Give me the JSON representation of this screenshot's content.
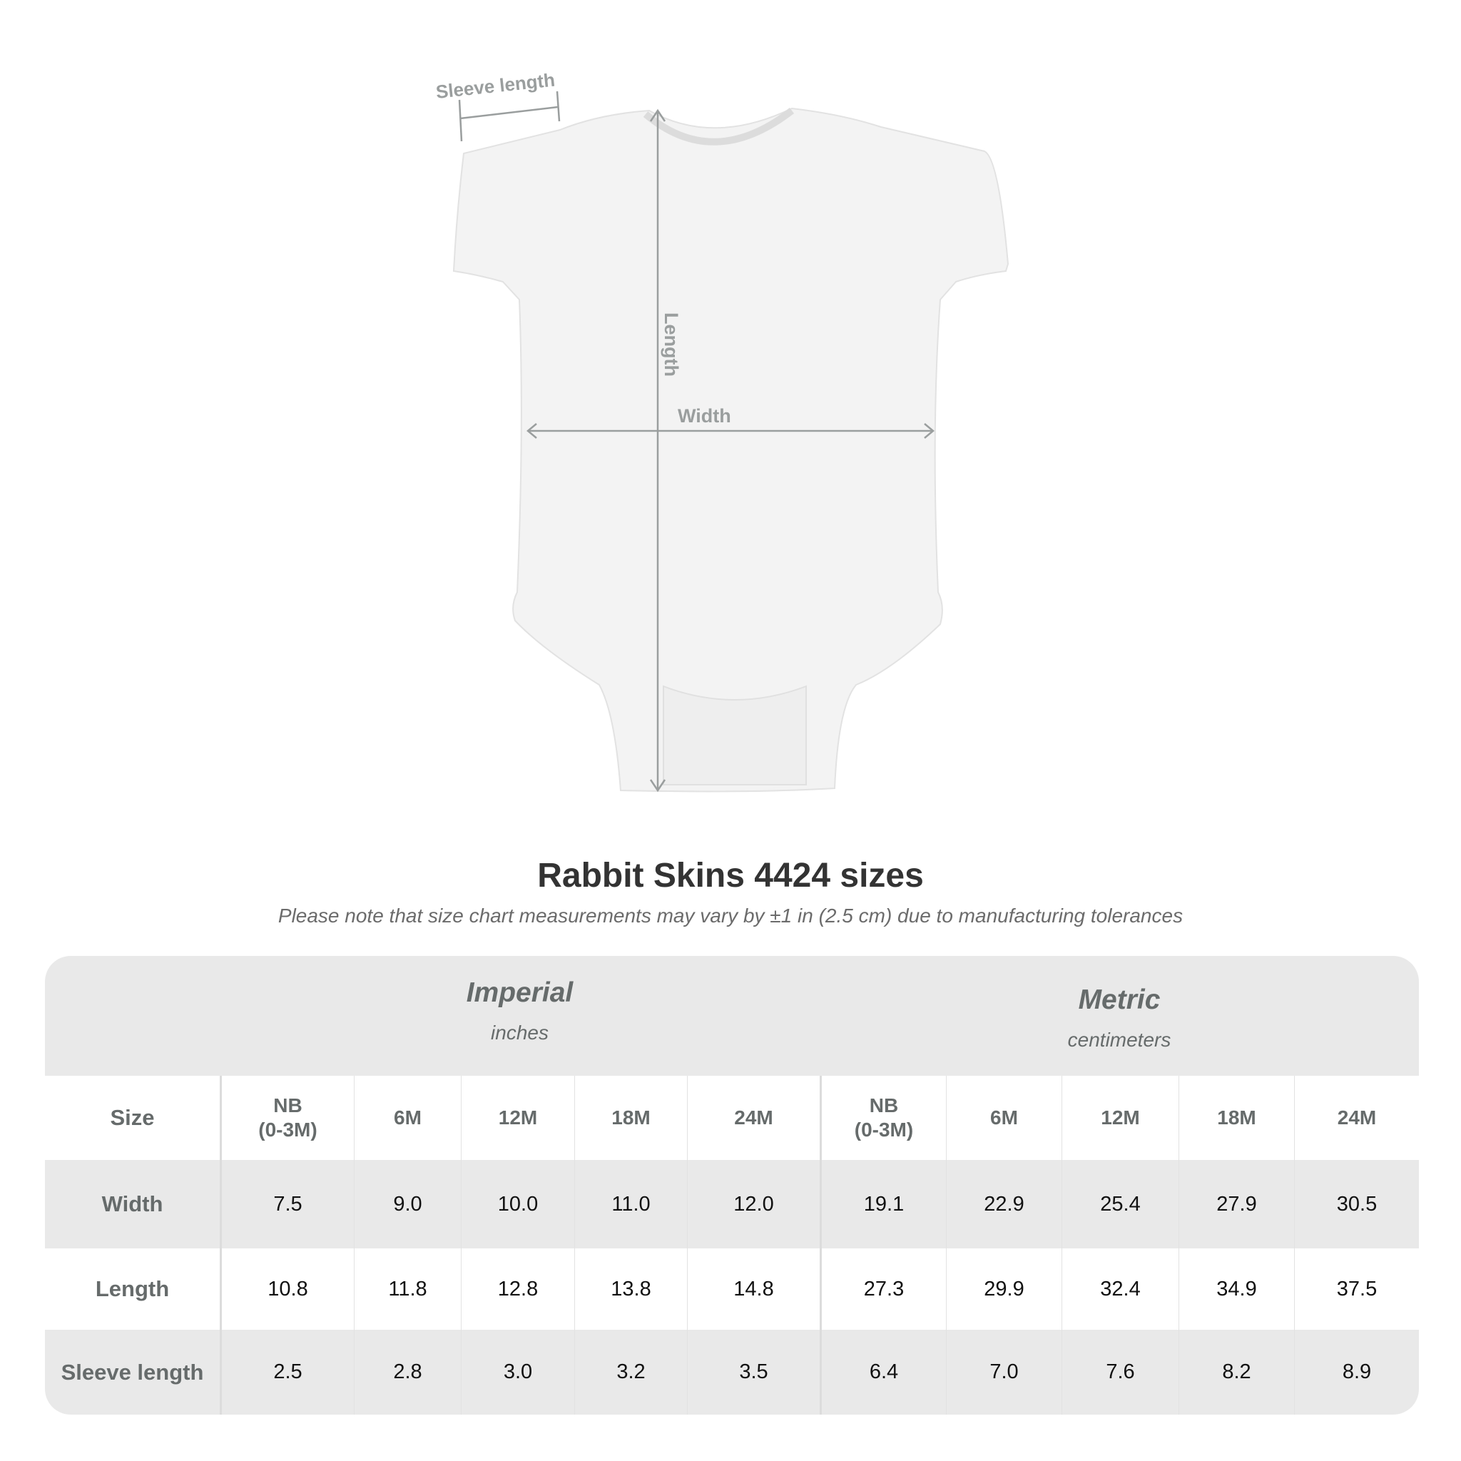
{
  "diagram": {
    "labels": {
      "sleeve": "Sleeve length",
      "length": "Length",
      "width": "Width"
    },
    "arrow_color": "#9a9e9e"
  },
  "title": "Rabbit Skins 4424 sizes",
  "subtitle": "Please note that size chart measurements may vary by ±1 in (2.5 cm) due to manufacturing tolerances",
  "table": {
    "groups": [
      {
        "name": "Imperial",
        "unit": "inches"
      },
      {
        "name": "Metric",
        "unit": "centimeters"
      }
    ],
    "size_label": "Size",
    "sizes": [
      "NB\n(0-3M)",
      "6M",
      "12M",
      "18M",
      "24M",
      "NB\n(0-3M)",
      "6M",
      "12M",
      "18M",
      "24M"
    ],
    "rows": [
      {
        "label": "Width",
        "values": [
          "7.5",
          "9.0",
          "10.0",
          "11.0",
          "12.0",
          "19.1",
          "22.9",
          "25.4",
          "27.9",
          "30.5"
        ]
      },
      {
        "label": "Length",
        "values": [
          "10.8",
          "11.8",
          "12.8",
          "13.8",
          "14.8",
          "27.3",
          "29.9",
          "32.4",
          "34.9",
          "37.5"
        ]
      },
      {
        "label": "Sleeve length",
        "values": [
          "2.5",
          "2.8",
          "3.0",
          "3.2",
          "3.5",
          "6.4",
          "7.0",
          "7.6",
          "8.2",
          "8.9"
        ]
      }
    ]
  }
}
